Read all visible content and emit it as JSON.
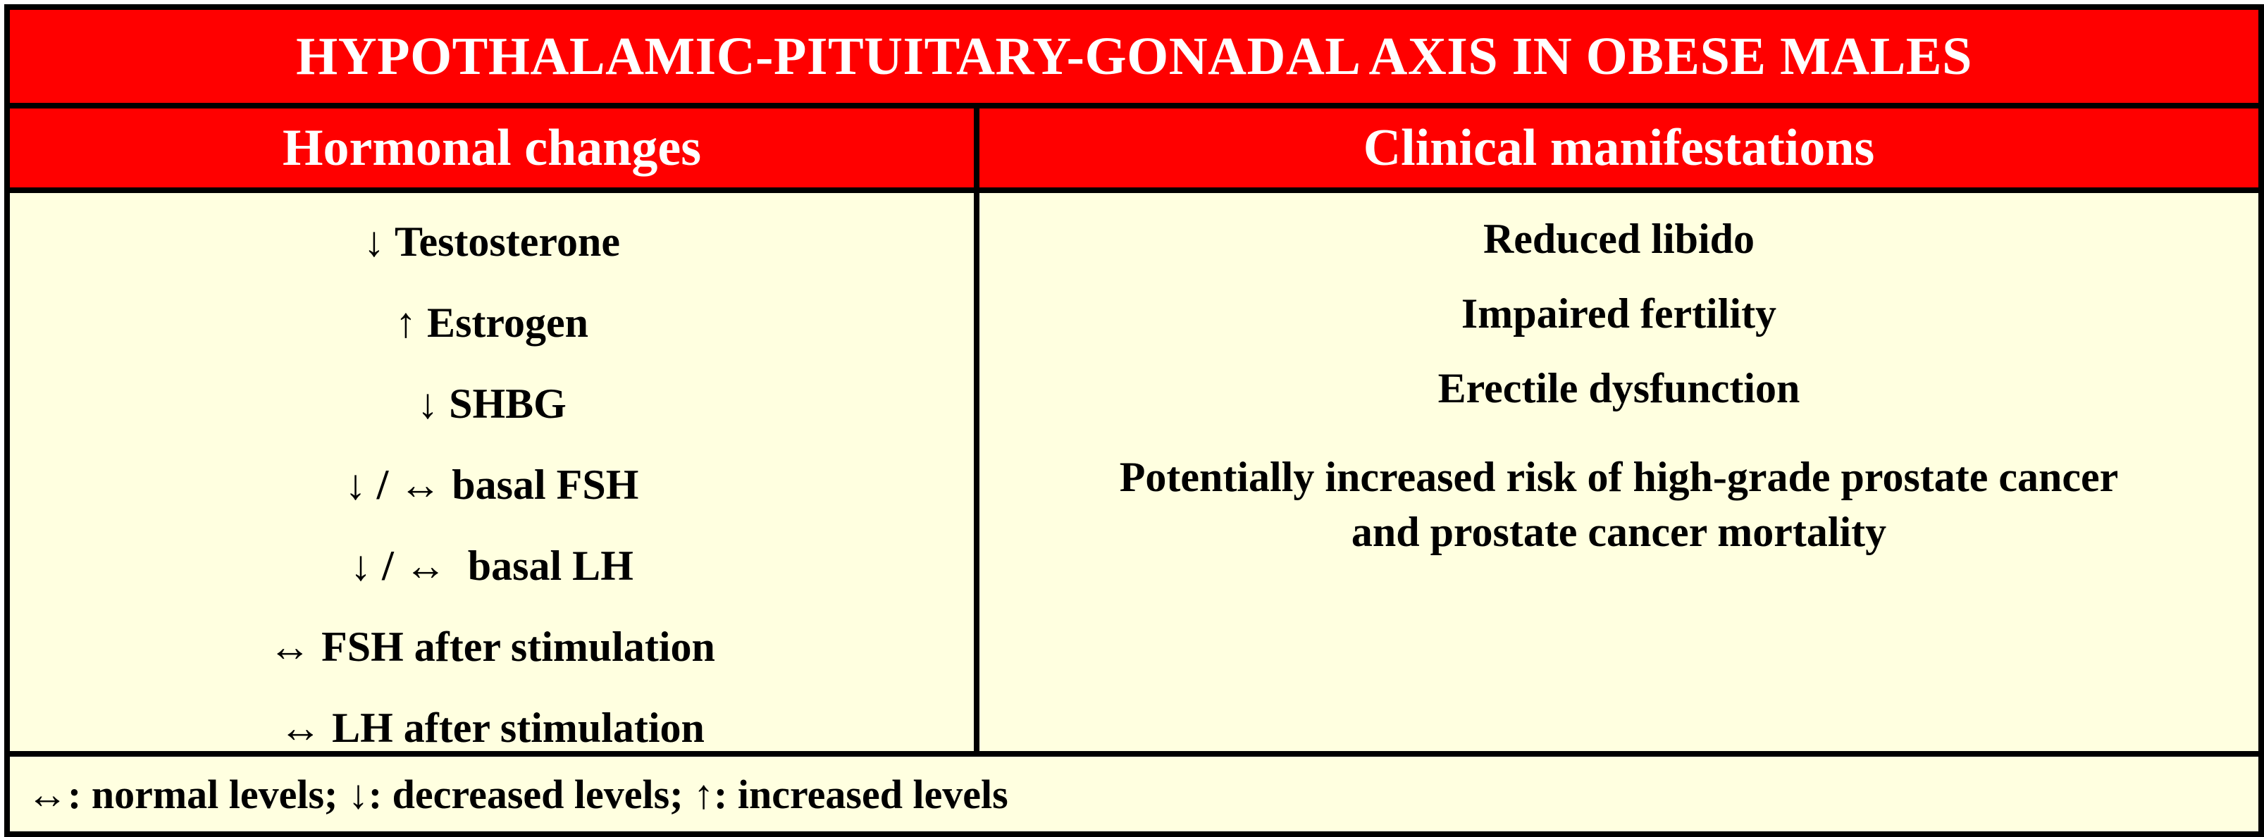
{
  "title": "HYPOTHALAMIC-PITUITARY-GONADAL AXIS IN OBESE MALES",
  "columns": {
    "left_header": "Hormonal changes",
    "right_header": "Clinical manifestations"
  },
  "hormonal_changes": [
    "↓ Testosterone",
    "↑ Estrogen",
    "↓ SHBG",
    "↓ / ↔ basal FSH",
    "↓ / ↔  basal LH",
    "↔ FSH after stimulation",
    "↔ LH after stimulation"
  ],
  "clinical_manifestations": [
    "Reduced libido",
    "Impaired fertility",
    "Erectile dysfunction"
  ],
  "clinical_manifestation_long": {
    "line1": "Potentially increased risk of high-grade prostate cancer",
    "line2": "and prostate cancer mortality"
  },
  "legend": "↔: normal levels; ↓: decreased levels; ↑: increased levels",
  "colors": {
    "header_red": "#ff0000",
    "cell_cream": "#ffffe0",
    "border": "#000000",
    "header_text": "#ffffff"
  }
}
